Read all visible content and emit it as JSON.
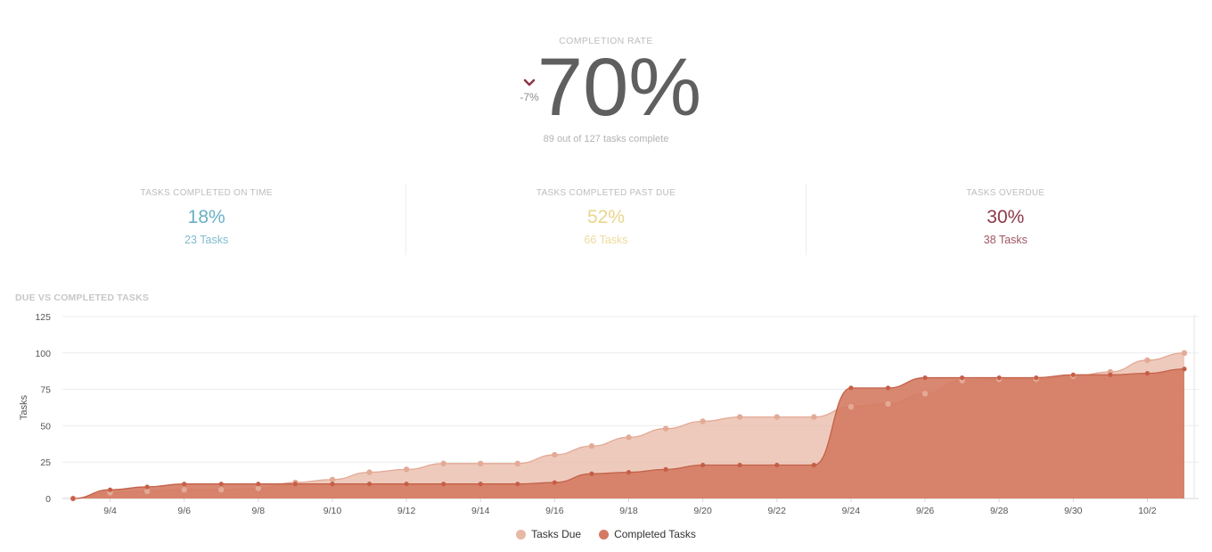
{
  "completion": {
    "label": "COMPLETION RATE",
    "value": "70%",
    "delta": "-7%",
    "subtitle": "89 out of 127 tasks complete"
  },
  "stats": [
    {
      "label": "TASKS COMPLETED ON TIME",
      "value": "18%",
      "count": "23 Tasks",
      "color": "#6ab0c4"
    },
    {
      "label": "TASKS COMPLETED PAST DUE",
      "value": "52%",
      "count": "66 Tasks",
      "color": "#ead58c"
    },
    {
      "label": "TASKS OVERDUE",
      "value": "30%",
      "count": "38 Tasks",
      "color": "#8e3848"
    }
  ],
  "colors": {
    "due": "#e8b8a6",
    "completed": "#d47a62",
    "delta_arrow": "#8e3848"
  },
  "chart_data": {
    "type": "area",
    "title": "DUE VS COMPLETED TASKS",
    "ylabel": "Tasks",
    "xlabel": "",
    "ylim": [
      0,
      125
    ],
    "yticks": [
      0,
      25,
      50,
      75,
      100,
      125
    ],
    "grid": true,
    "legend_position": "bottom",
    "x": [
      "9/3",
      "9/4",
      "9/5",
      "9/6",
      "9/7",
      "9/8",
      "9/9",
      "9/10",
      "9/11",
      "9/12",
      "9/13",
      "9/14",
      "9/15",
      "9/16",
      "9/17",
      "9/18",
      "9/19",
      "9/20",
      "9/21",
      "9/22",
      "9/23",
      "9/24",
      "9/25",
      "9/26",
      "9/27",
      "9/28",
      "9/29",
      "9/30",
      "10/1",
      "10/2",
      "10/3"
    ],
    "xtick_labels": [
      "9/4",
      "9/6",
      "9/8",
      "9/10",
      "9/12",
      "9/14",
      "9/16",
      "9/18",
      "9/20",
      "9/22",
      "9/24",
      "9/26",
      "9/28",
      "9/30",
      "10/2"
    ],
    "series": [
      {
        "name": "Tasks Due",
        "values": [
          0,
          4,
          5,
          6,
          6,
          7,
          11,
          13,
          18,
          20,
          24,
          24,
          24,
          30,
          36,
          42,
          48,
          53,
          56,
          56,
          56,
          63,
          65,
          72,
          81,
          82,
          82,
          84,
          87,
          95,
          100
        ]
      },
      {
        "name": "Completed Tasks",
        "values": [
          0,
          6,
          8,
          10,
          10,
          10,
          10,
          10,
          10,
          10,
          10,
          10,
          10,
          11,
          17,
          18,
          20,
          23,
          23,
          23,
          23,
          76,
          76,
          83,
          83,
          83,
          83,
          85,
          85,
          86,
          89
        ]
      }
    ]
  }
}
